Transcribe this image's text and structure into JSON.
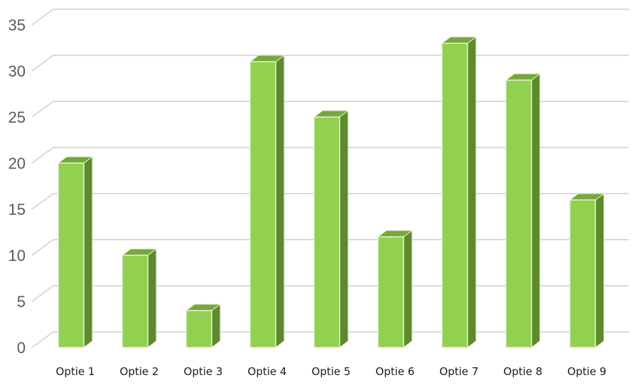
{
  "chart_data": {
    "type": "bar",
    "style": "3d-column",
    "categories": [
      "Optie 1",
      "Optie 2",
      "Optie 3",
      "Optie 4",
      "Optie 5",
      "Optie 6",
      "Optie 7",
      "Optie 8",
      "Optie 9"
    ],
    "values": [
      20,
      10,
      4,
      31,
      25,
      12,
      33,
      29,
      16
    ],
    "title": "",
    "xlabel": "",
    "ylabel": "",
    "ylim": [
      0,
      35
    ],
    "yticks": [
      0,
      5,
      10,
      15,
      20,
      25,
      30,
      35
    ],
    "grid": true,
    "legend": "none",
    "colors": {
      "bar_front": "#92D050",
      "bar_top": "#76A83A",
      "bar_side": "#5E8A2C",
      "bar_edge": "#E8F3DA",
      "grid": "#D9D9D9",
      "y_tick_text": "#595959",
      "x_tick_text": "#1A1A1A"
    }
  }
}
